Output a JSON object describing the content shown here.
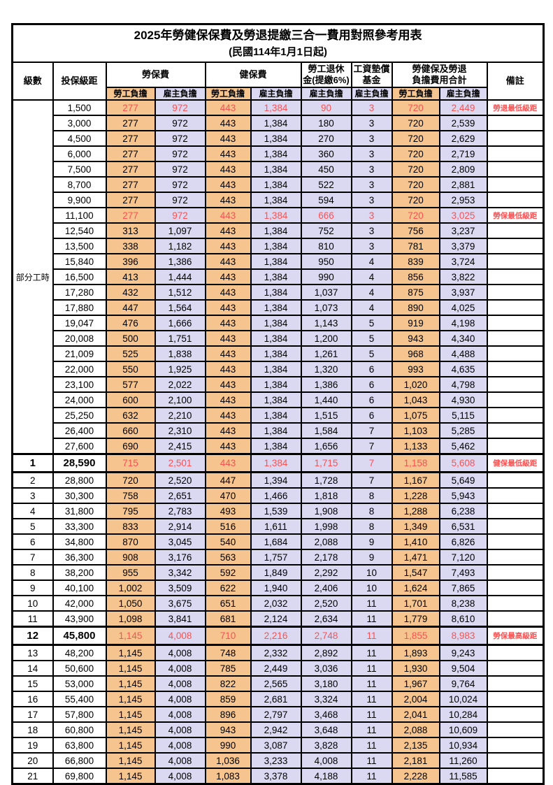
{
  "title": "2025年勞健保保費及勞退提繳三合一費用對照參考用表",
  "subtitle": "(民國114年1月1日起)",
  "header": {
    "level": "級數",
    "salary_bracket": "投保級距",
    "labor_insurance": "勞保費",
    "health_insurance": "健保費",
    "pension_line1": "勞工退休",
    "pension_line2": "金(提繳6%)",
    "wage_fund_line1": "工資墊償",
    "wage_fund_line2": "基金",
    "total_line1": "勞健保及勞退",
    "total_line2": "負擔費用合計",
    "remark": "備註",
    "employee_share": "勞工負擔",
    "employer_share": "雇主負擔"
  },
  "part_time_label": "部分工時",
  "colors": {
    "employee_fill": "#F6C48F",
    "employer_fill": "#DBD9F2",
    "highlight_text": "#FA5252",
    "border": "#000000"
  },
  "rows": [
    {
      "level": "",
      "salary": "1,500",
      "values": [
        "277",
        "972",
        "443",
        "1,384",
        "90",
        "3",
        "720",
        "2,449"
      ],
      "remark": "勞退最低級距",
      "red": true,
      "emph": false
    },
    {
      "level": "",
      "salary": "3,000",
      "values": [
        "277",
        "972",
        "443",
        "1,384",
        "180",
        "3",
        "720",
        "2,539"
      ],
      "remark": "",
      "red": false,
      "emph": false
    },
    {
      "level": "",
      "salary": "4,500",
      "values": [
        "277",
        "972",
        "443",
        "1,384",
        "270",
        "3",
        "720",
        "2,629"
      ],
      "remark": "",
      "red": false,
      "emph": false
    },
    {
      "level": "",
      "salary": "6,000",
      "values": [
        "277",
        "972",
        "443",
        "1,384",
        "360",
        "3",
        "720",
        "2,719"
      ],
      "remark": "",
      "red": false,
      "emph": false
    },
    {
      "level": "",
      "salary": "7,500",
      "values": [
        "277",
        "972",
        "443",
        "1,384",
        "450",
        "3",
        "720",
        "2,809"
      ],
      "remark": "",
      "red": false,
      "emph": false
    },
    {
      "level": "",
      "salary": "8,700",
      "values": [
        "277",
        "972",
        "443",
        "1,384",
        "522",
        "3",
        "720",
        "2,881"
      ],
      "remark": "",
      "red": false,
      "emph": false
    },
    {
      "level": "",
      "salary": "9,900",
      "values": [
        "277",
        "972",
        "443",
        "1,384",
        "594",
        "3",
        "720",
        "2,953"
      ],
      "remark": "",
      "red": false,
      "emph": false
    },
    {
      "level": "",
      "salary": "11,100",
      "values": [
        "277",
        "972",
        "443",
        "1,384",
        "666",
        "3",
        "720",
        "3,025"
      ],
      "remark": "勞保最低級距",
      "red": true,
      "emph": false
    },
    {
      "level": "",
      "salary": "12,540",
      "values": [
        "313",
        "1,097",
        "443",
        "1,384",
        "752",
        "3",
        "756",
        "3,237"
      ],
      "remark": "",
      "red": false,
      "emph": false
    },
    {
      "level": "",
      "salary": "13,500",
      "values": [
        "338",
        "1,182",
        "443",
        "1,384",
        "810",
        "3",
        "781",
        "3,379"
      ],
      "remark": "",
      "red": false,
      "emph": false
    },
    {
      "level": "",
      "salary": "15,840",
      "values": [
        "396",
        "1,386",
        "443",
        "1,384",
        "950",
        "4",
        "839",
        "3,724"
      ],
      "remark": "",
      "red": false,
      "emph": false
    },
    {
      "level": "",
      "salary": "16,500",
      "values": [
        "413",
        "1,444",
        "443",
        "1,384",
        "990",
        "4",
        "856",
        "3,822"
      ],
      "remark": "",
      "red": false,
      "emph": false
    },
    {
      "level": "",
      "salary": "17,280",
      "values": [
        "432",
        "1,512",
        "443",
        "1,384",
        "1,037",
        "4",
        "875",
        "3,937"
      ],
      "remark": "",
      "red": false,
      "emph": false
    },
    {
      "level": "",
      "salary": "17,880",
      "values": [
        "447",
        "1,564",
        "443",
        "1,384",
        "1,073",
        "4",
        "890",
        "4,025"
      ],
      "remark": "",
      "red": false,
      "emph": false
    },
    {
      "level": "",
      "salary": "19,047",
      "values": [
        "476",
        "1,666",
        "443",
        "1,384",
        "1,143",
        "5",
        "919",
        "4,198"
      ],
      "remark": "",
      "red": false,
      "emph": false
    },
    {
      "level": "",
      "salary": "20,008",
      "values": [
        "500",
        "1,751",
        "443",
        "1,384",
        "1,200",
        "5",
        "943",
        "4,340"
      ],
      "remark": "",
      "red": false,
      "emph": false
    },
    {
      "level": "",
      "salary": "21,009",
      "values": [
        "525",
        "1,838",
        "443",
        "1,384",
        "1,261",
        "5",
        "968",
        "4,488"
      ],
      "remark": "",
      "red": false,
      "emph": false
    },
    {
      "level": "",
      "salary": "22,000",
      "values": [
        "550",
        "1,925",
        "443",
        "1,384",
        "1,320",
        "6",
        "993",
        "4,635"
      ],
      "remark": "",
      "red": false,
      "emph": false
    },
    {
      "level": "",
      "salary": "23,100",
      "values": [
        "577",
        "2,022",
        "443",
        "1,384",
        "1,386",
        "6",
        "1,020",
        "4,798"
      ],
      "remark": "",
      "red": false,
      "emph": false
    },
    {
      "level": "",
      "salary": "24,000",
      "values": [
        "600",
        "2,100",
        "443",
        "1,384",
        "1,440",
        "6",
        "1,043",
        "4,930"
      ],
      "remark": "",
      "red": false,
      "emph": false
    },
    {
      "level": "",
      "salary": "25,250",
      "values": [
        "632",
        "2,210",
        "443",
        "1,384",
        "1,515",
        "6",
        "1,075",
        "5,115"
      ],
      "remark": "",
      "red": false,
      "emph": false
    },
    {
      "level": "",
      "salary": "26,400",
      "values": [
        "660",
        "2,310",
        "443",
        "1,384",
        "1,584",
        "7",
        "1,103",
        "5,285"
      ],
      "remark": "",
      "red": false,
      "emph": false
    },
    {
      "level": "",
      "salary": "27,600",
      "values": [
        "690",
        "2,415",
        "443",
        "1,384",
        "1,656",
        "7",
        "1,133",
        "5,462"
      ],
      "remark": "",
      "red": false,
      "emph": false
    },
    {
      "level": "1",
      "salary": "28,590",
      "values": [
        "715",
        "2,501",
        "443",
        "1,384",
        "1,715",
        "7",
        "1,158",
        "5,608"
      ],
      "remark": "健保最低級距",
      "red": true,
      "emph": true
    },
    {
      "level": "2",
      "salary": "28,800",
      "values": [
        "720",
        "2,520",
        "447",
        "1,394",
        "1,728",
        "7",
        "1,167",
        "5,649"
      ],
      "remark": "",
      "red": false,
      "emph": false
    },
    {
      "level": "3",
      "salary": "30,300",
      "values": [
        "758",
        "2,651",
        "470",
        "1,466",
        "1,818",
        "8",
        "1,228",
        "5,943"
      ],
      "remark": "",
      "red": false,
      "emph": false
    },
    {
      "level": "4",
      "salary": "31,800",
      "values": [
        "795",
        "2,783",
        "493",
        "1,539",
        "1,908",
        "8",
        "1,288",
        "6,238"
      ],
      "remark": "",
      "red": false,
      "emph": false
    },
    {
      "level": "5",
      "salary": "33,300",
      "values": [
        "833",
        "2,914",
        "516",
        "1,611",
        "1,998",
        "8",
        "1,349",
        "6,531"
      ],
      "remark": "",
      "red": false,
      "emph": false
    },
    {
      "level": "6",
      "salary": "34,800",
      "values": [
        "870",
        "3,045",
        "540",
        "1,684",
        "2,088",
        "9",
        "1,410",
        "6,826"
      ],
      "remark": "",
      "red": false,
      "emph": false
    },
    {
      "level": "7",
      "salary": "36,300",
      "values": [
        "908",
        "3,176",
        "563",
        "1,757",
        "2,178",
        "9",
        "1,471",
        "7,120"
      ],
      "remark": "",
      "red": false,
      "emph": false
    },
    {
      "level": "8",
      "salary": "38,200",
      "values": [
        "955",
        "3,342",
        "592",
        "1,849",
        "2,292",
        "10",
        "1,547",
        "7,493"
      ],
      "remark": "",
      "red": false,
      "emph": false
    },
    {
      "level": "9",
      "salary": "40,100",
      "values": [
        "1,002",
        "3,509",
        "622",
        "1,940",
        "2,406",
        "10",
        "1,624",
        "7,865"
      ],
      "remark": "",
      "red": false,
      "emph": false
    },
    {
      "level": "10",
      "salary": "42,000",
      "values": [
        "1,050",
        "3,675",
        "651",
        "2,032",
        "2,520",
        "11",
        "1,701",
        "8,238"
      ],
      "remark": "",
      "red": false,
      "emph": false
    },
    {
      "level": "11",
      "salary": "43,900",
      "values": [
        "1,098",
        "3,841",
        "681",
        "2,124",
        "2,634",
        "11",
        "1,779",
        "8,610"
      ],
      "remark": "",
      "red": false,
      "emph": false
    },
    {
      "level": "12",
      "salary": "45,800",
      "values": [
        "1,145",
        "4,008",
        "710",
        "2,216",
        "2,748",
        "11",
        "1,855",
        "8,983"
      ],
      "remark": "勞保最高級距",
      "red": true,
      "emph": true
    },
    {
      "level": "13",
      "salary": "48,200",
      "values": [
        "1,145",
        "4,008",
        "748",
        "2,332",
        "2,892",
        "11",
        "1,893",
        "9,243"
      ],
      "remark": "",
      "red": false,
      "emph": false
    },
    {
      "level": "14",
      "salary": "50,600",
      "values": [
        "1,145",
        "4,008",
        "785",
        "2,449",
        "3,036",
        "11",
        "1,930",
        "9,504"
      ],
      "remark": "",
      "red": false,
      "emph": false
    },
    {
      "level": "15",
      "salary": "53,000",
      "values": [
        "1,145",
        "4,008",
        "822",
        "2,565",
        "3,180",
        "11",
        "1,967",
        "9,764"
      ],
      "remark": "",
      "red": false,
      "emph": false
    },
    {
      "level": "16",
      "salary": "55,400",
      "values": [
        "1,145",
        "4,008",
        "859",
        "2,681",
        "3,324",
        "11",
        "2,004",
        "10,024"
      ],
      "remark": "",
      "red": false,
      "emph": false
    },
    {
      "level": "17",
      "salary": "57,800",
      "values": [
        "1,145",
        "4,008",
        "896",
        "2,797",
        "3,468",
        "11",
        "2,041",
        "10,284"
      ],
      "remark": "",
      "red": false,
      "emph": false
    },
    {
      "level": "18",
      "salary": "60,800",
      "values": [
        "1,145",
        "4,008",
        "943",
        "2,942",
        "3,648",
        "11",
        "2,088",
        "10,609"
      ],
      "remark": "",
      "red": false,
      "emph": false
    },
    {
      "level": "19",
      "salary": "63,800",
      "values": [
        "1,145",
        "4,008",
        "990",
        "3,087",
        "3,828",
        "11",
        "2,135",
        "10,934"
      ],
      "remark": "",
      "red": false,
      "emph": false
    },
    {
      "level": "20",
      "salary": "66,800",
      "values": [
        "1,145",
        "4,008",
        "1,036",
        "3,233",
        "4,008",
        "11",
        "2,181",
        "11,260"
      ],
      "remark": "",
      "red": false,
      "emph": false
    },
    {
      "level": "21",
      "salary": "69,800",
      "values": [
        "1,145",
        "4,008",
        "1,083",
        "3,378",
        "4,188",
        "11",
        "2,228",
        "11,585"
      ],
      "remark": "",
      "red": false,
      "emph": false
    }
  ]
}
